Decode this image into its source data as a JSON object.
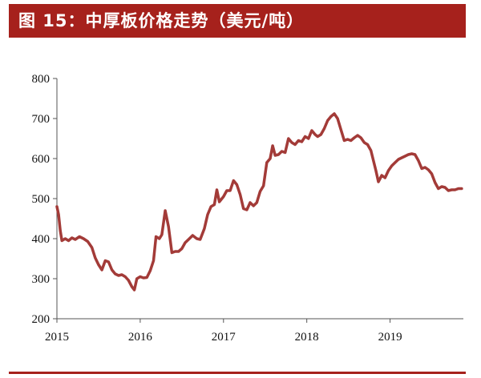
{
  "header": {
    "title": "图 15：中厚板价格走势（美元/吨）"
  },
  "chart_data": {
    "type": "line",
    "title": "图 15：中厚板价格走势（美元/吨）",
    "xlabel": "",
    "ylabel": "",
    "xlim": [
      2015.0,
      2019.88
    ],
    "ylim": [
      200,
      800
    ],
    "y_ticks": [
      200,
      300,
      400,
      500,
      600,
      700,
      800
    ],
    "x_ticks": [
      2015,
      2016,
      2017,
      2018,
      2019
    ],
    "x_tick_labels": [
      "2015",
      "2016",
      "2017",
      "2018",
      "2019"
    ],
    "grid": false,
    "legend": "none",
    "line_color": "#a33b38",
    "series": [
      {
        "values": [
          [
            2015.0,
            480
          ],
          [
            2015.02,
            460
          ],
          [
            2015.04,
            420
          ],
          [
            2015.06,
            395
          ],
          [
            2015.1,
            400
          ],
          [
            2015.14,
            395
          ],
          [
            2015.18,
            402
          ],
          [
            2015.22,
            398
          ],
          [
            2015.27,
            405
          ],
          [
            2015.32,
            400
          ],
          [
            2015.37,
            393
          ],
          [
            2015.42,
            378
          ],
          [
            2015.46,
            352
          ],
          [
            2015.5,
            335
          ],
          [
            2015.54,
            322
          ],
          [
            2015.58,
            345
          ],
          [
            2015.62,
            342
          ],
          [
            2015.66,
            322
          ],
          [
            2015.7,
            312
          ],
          [
            2015.74,
            308
          ],
          [
            2015.78,
            310
          ],
          [
            2015.82,
            305
          ],
          [
            2015.86,
            296
          ],
          [
            2015.9,
            280
          ],
          [
            2015.93,
            272
          ],
          [
            2015.96,
            300
          ],
          [
            2016.0,
            305
          ],
          [
            2016.04,
            302
          ],
          [
            2016.08,
            303
          ],
          [
            2016.12,
            320
          ],
          [
            2016.16,
            345
          ],
          [
            2016.19,
            405
          ],
          [
            2016.23,
            400
          ],
          [
            2016.26,
            410
          ],
          [
            2016.3,
            470
          ],
          [
            2016.34,
            430
          ],
          [
            2016.38,
            365
          ],
          [
            2016.42,
            368
          ],
          [
            2016.46,
            368
          ],
          [
            2016.5,
            375
          ],
          [
            2016.54,
            390
          ],
          [
            2016.58,
            398
          ],
          [
            2016.63,
            408
          ],
          [
            2016.68,
            400
          ],
          [
            2016.72,
            398
          ],
          [
            2016.77,
            425
          ],
          [
            2016.81,
            460
          ],
          [
            2016.85,
            480
          ],
          [
            2016.89,
            485
          ],
          [
            2016.92,
            522
          ],
          [
            2016.95,
            492
          ],
          [
            2017.0,
            505
          ],
          [
            2017.04,
            520
          ],
          [
            2017.08,
            520
          ],
          [
            2017.12,
            545
          ],
          [
            2017.16,
            535
          ],
          [
            2017.2,
            510
          ],
          [
            2017.24,
            475
          ],
          [
            2017.28,
            472
          ],
          [
            2017.32,
            490
          ],
          [
            2017.36,
            482
          ],
          [
            2017.4,
            490
          ],
          [
            2017.44,
            518
          ],
          [
            2017.48,
            532
          ],
          [
            2017.52,
            590
          ],
          [
            2017.56,
            600
          ],
          [
            2017.59,
            632
          ],
          [
            2017.62,
            608
          ],
          [
            2017.66,
            610
          ],
          [
            2017.7,
            618
          ],
          [
            2017.74,
            615
          ],
          [
            2017.78,
            650
          ],
          [
            2017.82,
            640
          ],
          [
            2017.86,
            635
          ],
          [
            2017.9,
            645
          ],
          [
            2017.94,
            642
          ],
          [
            2017.98,
            655
          ],
          [
            2018.02,
            650
          ],
          [
            2018.06,
            670
          ],
          [
            2018.1,
            660
          ],
          [
            2018.13,
            655
          ],
          [
            2018.17,
            660
          ],
          [
            2018.21,
            675
          ],
          [
            2018.25,
            695
          ],
          [
            2018.29,
            705
          ],
          [
            2018.33,
            712
          ],
          [
            2018.37,
            700
          ],
          [
            2018.41,
            672
          ],
          [
            2018.45,
            645
          ],
          [
            2018.49,
            648
          ],
          [
            2018.53,
            645
          ],
          [
            2018.57,
            652
          ],
          [
            2018.61,
            658
          ],
          [
            2018.65,
            652
          ],
          [
            2018.69,
            640
          ],
          [
            2018.73,
            635
          ],
          [
            2018.77,
            620
          ],
          [
            2018.8,
            595
          ],
          [
            2018.83,
            570
          ],
          [
            2018.86,
            542
          ],
          [
            2018.9,
            558
          ],
          [
            2018.94,
            552
          ],
          [
            2018.98,
            570
          ],
          [
            2019.02,
            582
          ],
          [
            2019.06,
            590
          ],
          [
            2019.1,
            598
          ],
          [
            2019.14,
            602
          ],
          [
            2019.18,
            606
          ],
          [
            2019.22,
            610
          ],
          [
            2019.26,
            612
          ],
          [
            2019.3,
            610
          ],
          [
            2019.34,
            595
          ],
          [
            2019.38,
            575
          ],
          [
            2019.42,
            578
          ],
          [
            2019.46,
            572
          ],
          [
            2019.5,
            562
          ],
          [
            2019.54,
            540
          ],
          [
            2019.58,
            525
          ],
          [
            2019.62,
            530
          ],
          [
            2019.66,
            528
          ],
          [
            2019.7,
            520
          ],
          [
            2019.74,
            522
          ],
          [
            2019.78,
            522
          ],
          [
            2019.82,
            525
          ],
          [
            2019.86,
            525
          ]
        ]
      }
    ]
  }
}
